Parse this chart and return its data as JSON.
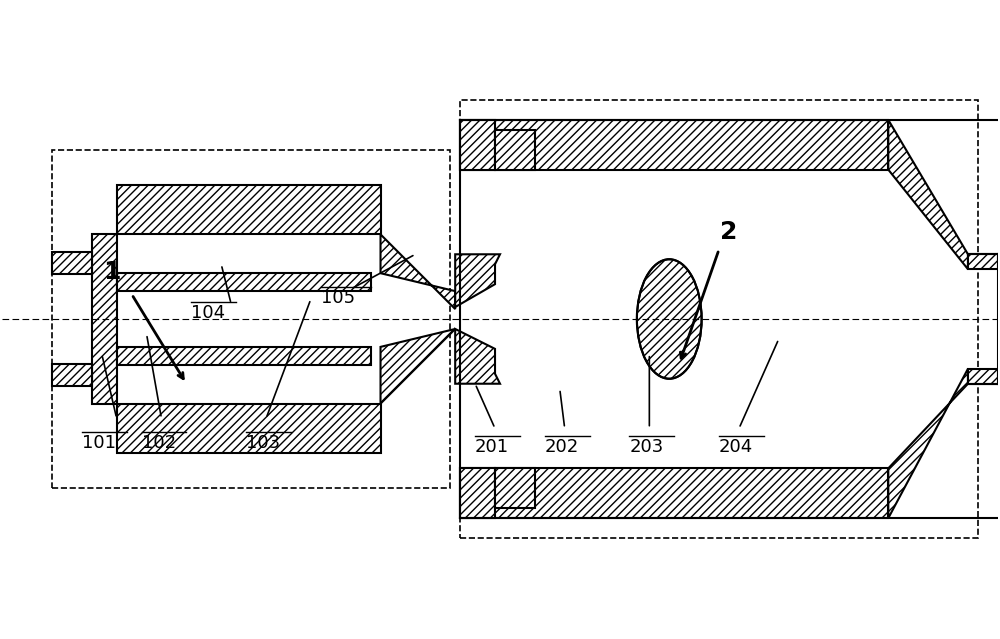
{
  "bg_color": "#ffffff",
  "line_color": "#000000",
  "hatch_color": "#000000",
  "hatch_pattern": "////",
  "fig_width": 10.0,
  "fig_height": 6.39,
  "label_1": "1",
  "label_2": "2",
  "label_101": "101",
  "label_102": "102",
  "label_103": "103",
  "label_104": "104",
  "label_105": "105",
  "label_201": "201",
  "label_202": "202",
  "label_203": "203",
  "label_204": "204"
}
